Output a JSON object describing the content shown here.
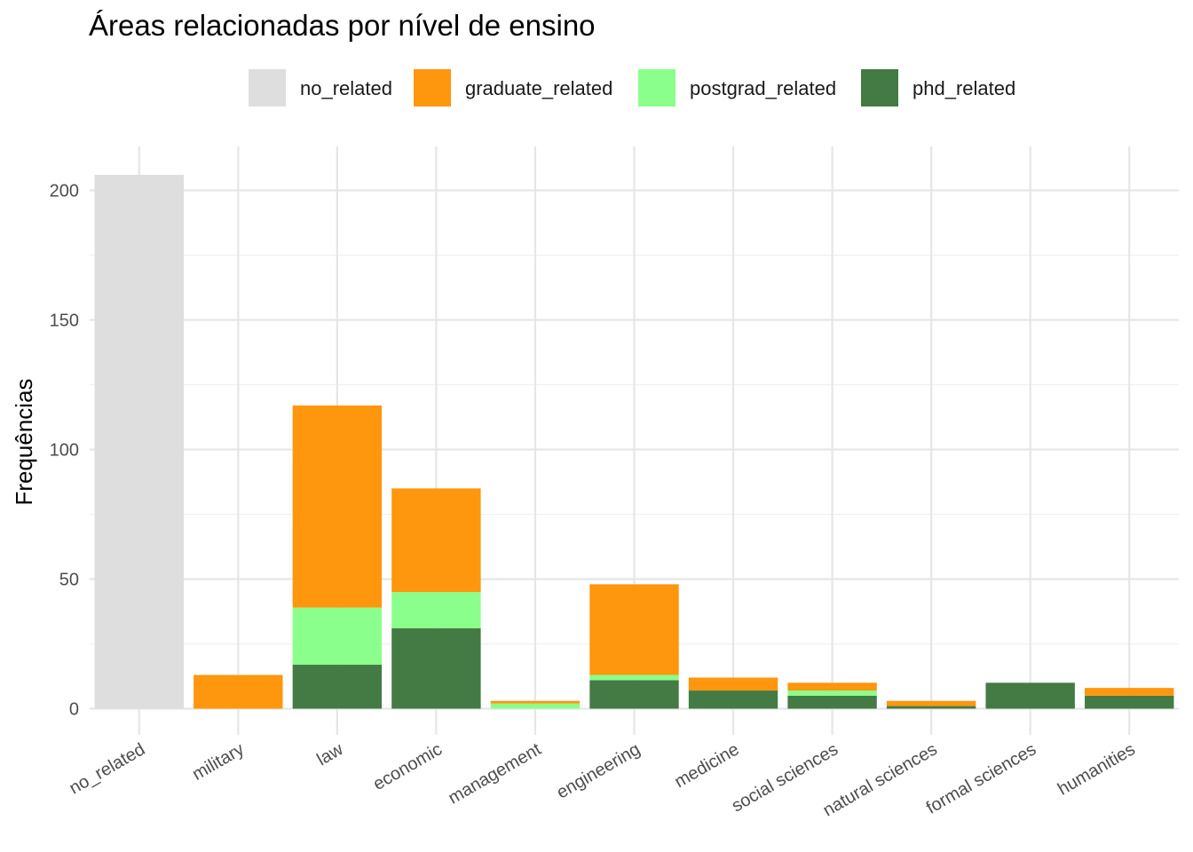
{
  "chart_data": {
    "type": "bar",
    "stacked": true,
    "title": "Áreas relacionadas por nível de ensino",
    "xlabel": "",
    "ylabel": "Frequências",
    "ylim": [
      0,
      210
    ],
    "yticks": [
      0,
      50,
      100,
      150,
      200
    ],
    "grid": true,
    "legend_position": "top",
    "categories": [
      "no_related",
      "military",
      "law",
      "economic",
      "management",
      "engineering",
      "medicine",
      "social sciences",
      "natural sciences",
      "formal sciences",
      "humanities"
    ],
    "series": [
      {
        "name": "phd_related",
        "color": "#447a44",
        "values": [
          0,
          0,
          17,
          31,
          0,
          11,
          7,
          5,
          1,
          10,
          5
        ]
      },
      {
        "name": "postgrad_related",
        "color": "#8bff8b",
        "values": [
          0,
          0,
          22,
          14,
          2,
          2,
          0,
          2,
          0,
          0,
          0
        ]
      },
      {
        "name": "graduate_related",
        "color": "#fe960e",
        "values": [
          0,
          13,
          78,
          40,
          1,
          35,
          5,
          3,
          2,
          0,
          3
        ]
      },
      {
        "name": "no_related",
        "color": "#dedede",
        "values": [
          206,
          0,
          0,
          0,
          0,
          0,
          0,
          0,
          0,
          0,
          0
        ]
      }
    ],
    "legend_order": [
      "no_related",
      "graduate_related",
      "postgrad_related",
      "phd_related"
    ]
  }
}
